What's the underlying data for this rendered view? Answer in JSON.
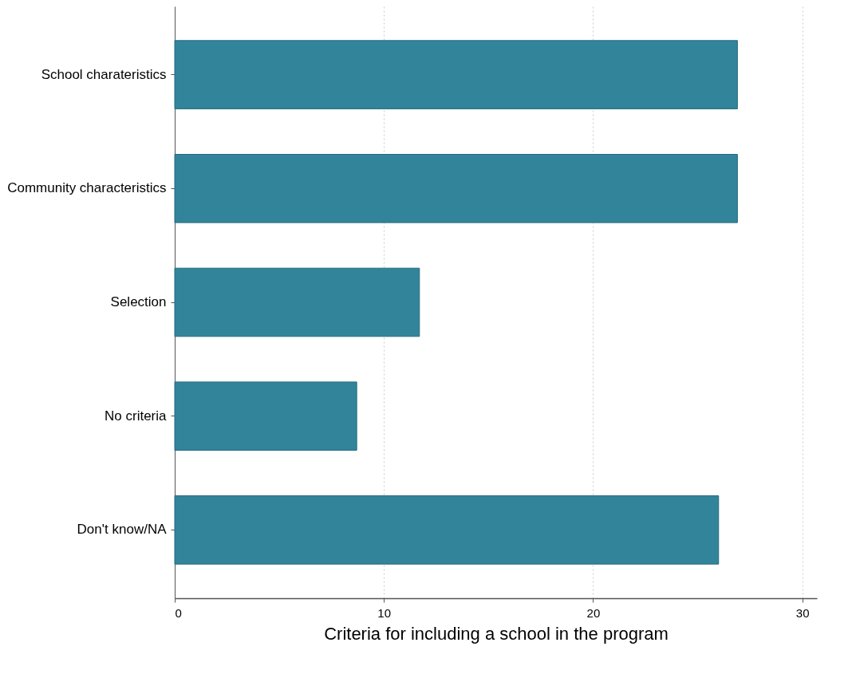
{
  "chart_data": {
    "type": "bar",
    "orientation": "horizontal",
    "xlabel": "Criteria for including a school in the program",
    "categories": [
      "School charateristics",
      "Community characteristics",
      "Selection",
      "No criteria",
      "Don't know/NA"
    ],
    "values": [
      26.9,
      26.9,
      11.7,
      8.7,
      26.0
    ],
    "color": "#32849a",
    "xlim": [
      0,
      30.7
    ],
    "xticks": [
      0,
      10,
      20,
      30
    ],
    "grid": "x"
  }
}
